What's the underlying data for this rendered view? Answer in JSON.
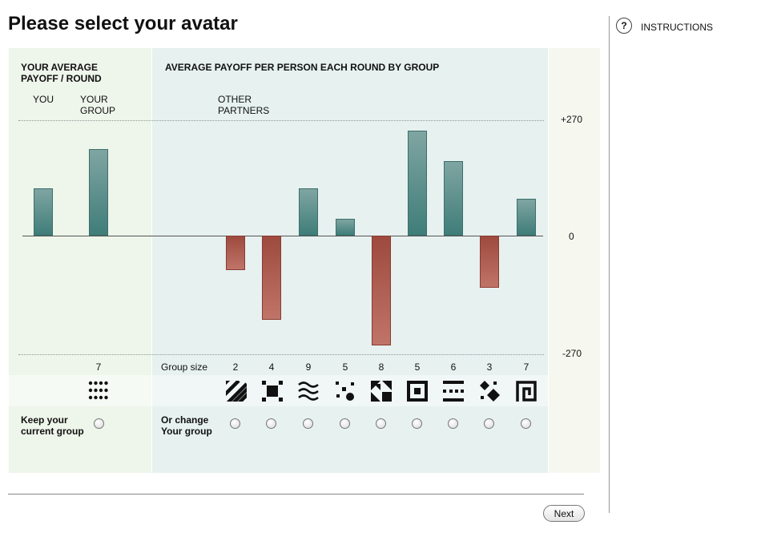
{
  "title": "Please select your avatar",
  "instructions_label": "INSTRUCTIONS",
  "help_symbol": "?",
  "headers": {
    "left_line1": "YOUR AVERAGE",
    "left_line2": "PAYOFF / ROUND",
    "mid": "AVERAGE PAYOFF PER PERSON EACH ROUND BY GROUP"
  },
  "column_labels": {
    "you": "YOU",
    "your_group_1": "YOUR",
    "your_group_2": "GROUP",
    "other_1": "OTHER",
    "other_2": "PARTNERS"
  },
  "axis": {
    "top": "+270",
    "zero": "0",
    "bottom": "-270",
    "min": -270,
    "max": 270
  },
  "chart_data": {
    "type": "bar",
    "ylim": [
      -270,
      270
    ],
    "series": [
      {
        "values": [
          110,
          200,
          null,
          null,
          -80,
          -195,
          110,
          38,
          -253,
          242,
          172,
          -120,
          85
        ]
      }
    ],
    "categories": [
      "YOU",
      "YOUR GROUP",
      "",
      "",
      "2",
      "4",
      "9",
      "5",
      "8",
      "5",
      "6",
      "3",
      "7"
    ]
  },
  "group_size_label": "Group size",
  "your_group_size": "7",
  "group_sizes": [
    "2",
    "4",
    "9",
    "5",
    "8",
    "5",
    "6",
    "3",
    "7"
  ],
  "avatars": [
    "dots-grid-icon",
    "diagonal-stripes-icon",
    "framed-square-icon",
    "waves-icon",
    "scattered-dots-icon",
    "corner-triangles-icon",
    "concentric-square-icon",
    "dashed-bars-icon",
    "diamonds-icon",
    "spiral-square-icon"
  ],
  "keep_label_1": "Keep your",
  "keep_label_2": "current group",
  "change_label_1": "Or change",
  "change_label_2": "Your group",
  "next_label": "Next",
  "colors": {
    "positive": "#4a807c",
    "negative": "#a85448",
    "left_panel": "#eef5ea",
    "mid_panel": "#e6f1f0"
  }
}
